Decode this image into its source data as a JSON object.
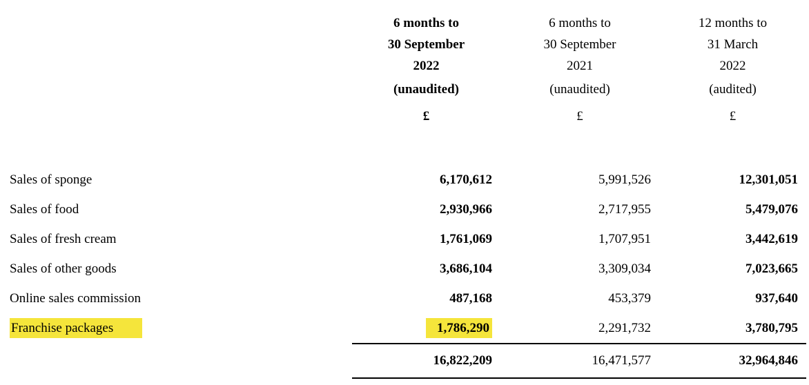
{
  "document": {
    "background_color": "#ffffff",
    "highlight_color": "#f5e53b",
    "text_color": "#000000"
  },
  "table": {
    "columns": [
      {
        "title": "6 months to\n30 September\n2022",
        "audit_label": "(unaudited)",
        "currency": "£",
        "header_emphasis": "bold",
        "values_emphasis": "bold"
      },
      {
        "title": "6 months to\n30 September\n2021",
        "audit_label": "(unaudited)",
        "currency": "£",
        "header_emphasis": "regular",
        "values_emphasis": "regular"
      },
      {
        "title": "12 months to\n31 March\n2022",
        "audit_label": "(audited)",
        "currency": "£",
        "header_emphasis": "regular",
        "values_emphasis": "bold"
      }
    ],
    "rows": [
      {
        "label": "Sales of sponge",
        "values": [
          "6,170,612",
          "5,991,526",
          "12,301,051"
        ]
      },
      {
        "label": "Sales of food",
        "values": [
          "2,930,966",
          "2,717,955",
          "5,479,076"
        ]
      },
      {
        "label": "Sales of fresh cream",
        "values": [
          "1,761,069",
          "1,707,951",
          "3,442,619"
        ]
      },
      {
        "label": "Sales of other goods",
        "values": [
          "3,686,104",
          "3,309,034",
          "7,023,665"
        ]
      },
      {
        "label": "Online sales commission",
        "values": [
          "487,168",
          "453,379",
          "937,640"
        ]
      },
      {
        "label": "Franchise packages",
        "values": [
          "1,786,290",
          "2,291,732",
          "3,780,795"
        ],
        "highlight_label": true,
        "highlight_values": [
          0
        ]
      }
    ],
    "total_row": {
      "values": [
        "16,822,209",
        "16,471,577",
        "32,964,846"
      ]
    }
  }
}
